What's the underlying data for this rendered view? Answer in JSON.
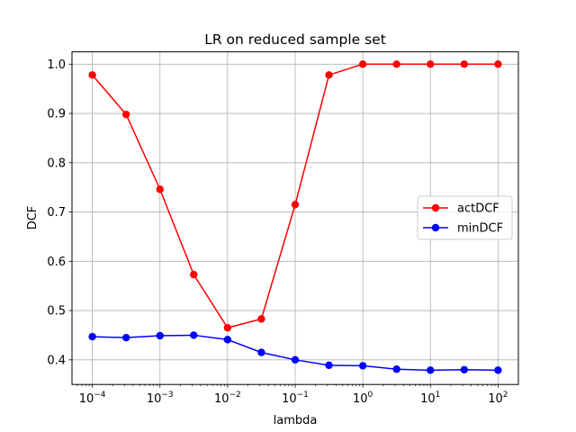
{
  "chart_data": {
    "type": "line",
    "title": "LR on reduced sample set",
    "xlabel": "lambda",
    "ylabel": "DCF",
    "xscale": "log",
    "xlim": [
      5e-05,
      200
    ],
    "ylim": [
      0.35,
      1.025
    ],
    "grid": true,
    "legend_position": "center-right",
    "x": [
      0.0001,
      0.000316,
      0.001,
      0.00316,
      0.01,
      0.0316,
      0.1,
      0.316,
      1,
      3.16,
      10,
      31.6,
      100
    ],
    "x_tick_labels": [
      {
        "value": 0.0001,
        "base": "10",
        "exp": "−4"
      },
      {
        "value": 0.001,
        "base": "10",
        "exp": "−3"
      },
      {
        "value": 0.01,
        "base": "10",
        "exp": "−2"
      },
      {
        "value": 0.1,
        "base": "10",
        "exp": "−1"
      },
      {
        "value": 1,
        "base": "10",
        "exp": "0"
      },
      {
        "value": 10,
        "base": "10",
        "exp": "1"
      },
      {
        "value": 100,
        "base": "10",
        "exp": "2"
      }
    ],
    "y_ticks": [
      0.4,
      0.5,
      0.6,
      0.7,
      0.8,
      0.9,
      1.0
    ],
    "y_tick_labels": [
      "0.4",
      "0.5",
      "0.6",
      "0.7",
      "0.8",
      "0.9",
      "1.0"
    ],
    "series": [
      {
        "name": "actDCF",
        "color": "#ff0000",
        "values": [
          0.978,
          0.898,
          0.746,
          0.573,
          0.465,
          0.483,
          0.715,
          0.978,
          1.0,
          1.0,
          1.0,
          1.0,
          1.0
        ]
      },
      {
        "name": "minDCF",
        "color": "#0000ff",
        "values": [
          0.447,
          0.445,
          0.449,
          0.45,
          0.441,
          0.415,
          0.4,
          0.389,
          0.388,
          0.381,
          0.379,
          0.38,
          0.379
        ]
      }
    ]
  }
}
